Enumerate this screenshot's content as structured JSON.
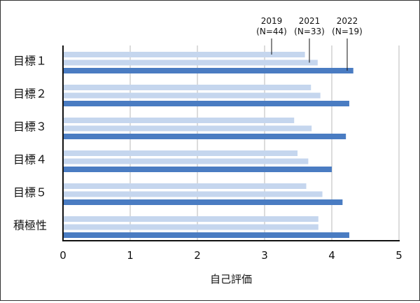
{
  "chart_data": {
    "type": "bar",
    "orientation": "horizontal",
    "title": "",
    "xlabel": "自己評価",
    "ylabel": "",
    "xlim": [
      0,
      5
    ],
    "xticks": [
      "0",
      "1",
      "2",
      "3",
      "4",
      "5"
    ],
    "grid": true,
    "legend_placement": "top-right, labels with pointer lines",
    "categories": [
      "目標１",
      "目標２",
      "目標３",
      "目標４",
      "目標５",
      "積極性"
    ],
    "series": [
      {
        "name": "2019 (N=44)",
        "year": "2019",
        "n": "(N=44)",
        "color": "#c5d6ee",
        "values": [
          3.6,
          3.69,
          3.44,
          3.49,
          3.62,
          3.8
        ]
      },
      {
        "name": "2021 (N=33)",
        "year": "2021",
        "n": "(N=33)",
        "color": "#c5d6ee",
        "values": [
          3.79,
          3.83,
          3.7,
          3.65,
          3.86,
          3.8
        ]
      },
      {
        "name": "2022 (N=19)",
        "year": "2022",
        "n": "(N=19)",
        "color": "#4a7cc2",
        "values": [
          4.32,
          4.26,
          4.21,
          4.0,
          4.16,
          4.26
        ]
      }
    ]
  }
}
